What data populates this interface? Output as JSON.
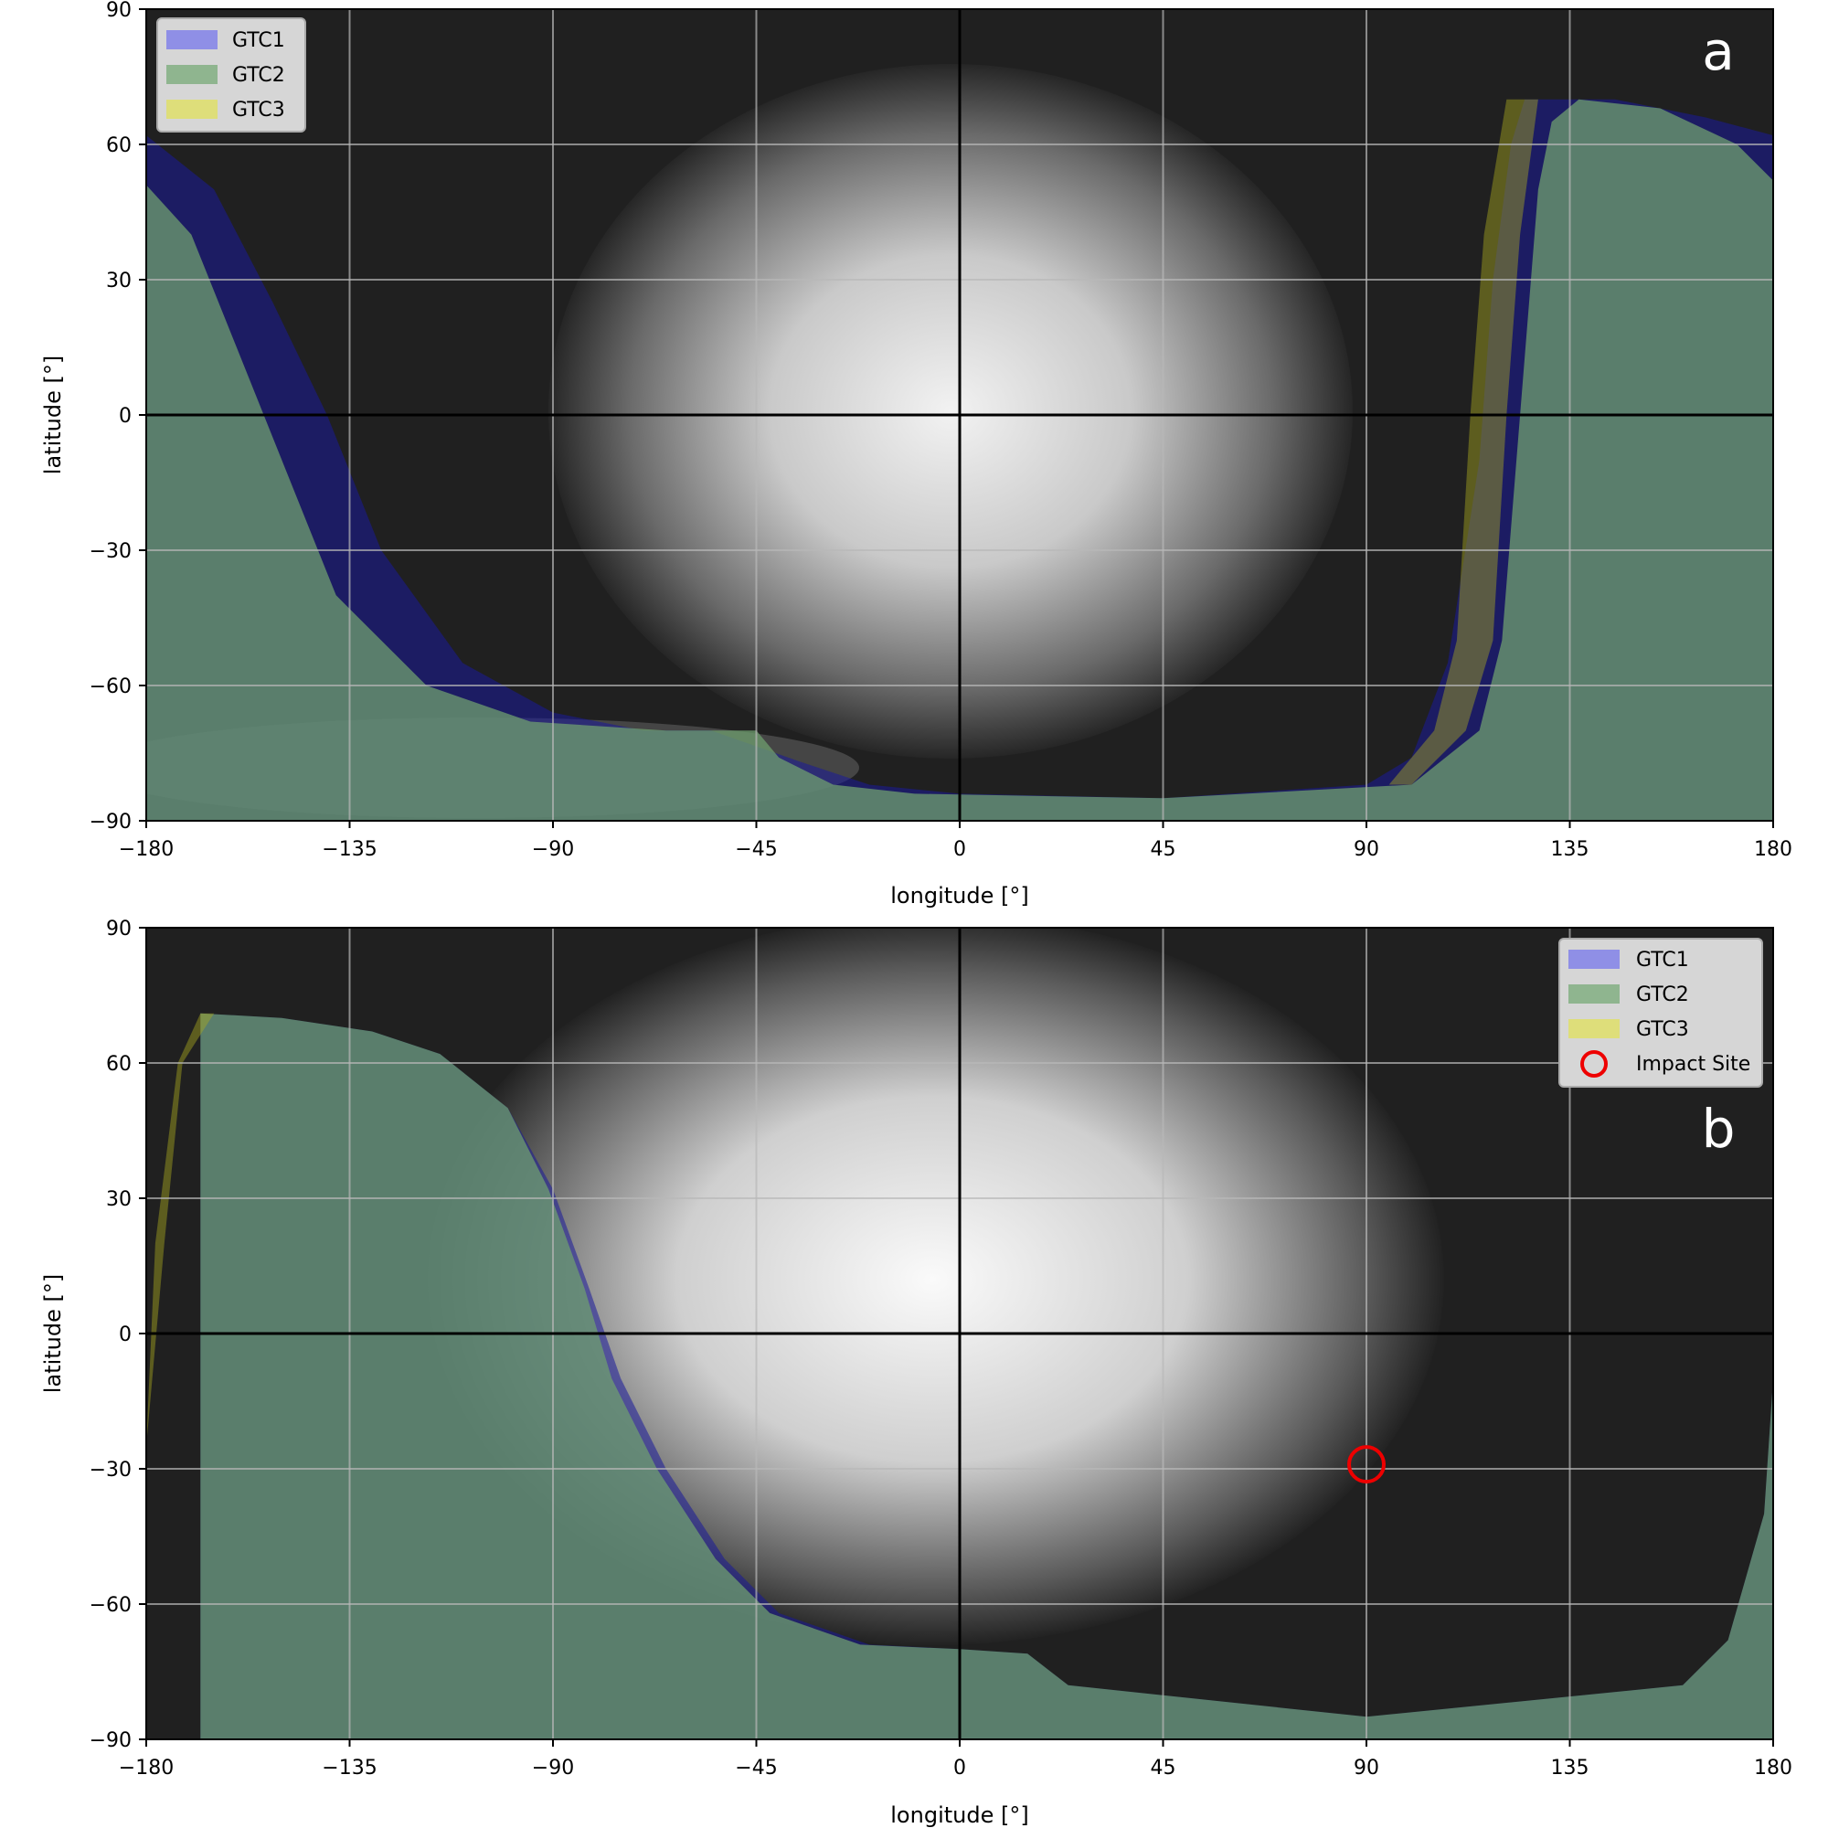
{
  "chart_data": [
    {
      "type": "area",
      "panel_label": "a",
      "xlabel": "longitude [°]",
      "ylabel": "latitude [°]",
      "xlim": [
        -180,
        180
      ],
      "ylim": [
        -90,
        90
      ],
      "xticks": [
        -180,
        -135,
        -90,
        -45,
        0,
        45,
        90,
        135,
        180
      ],
      "yticks": [
        -90,
        -60,
        -30,
        0,
        30,
        60,
        90
      ],
      "xtick_labels": [
        "−180",
        "−135",
        "−90",
        "−45",
        "0",
        "45",
        "90",
        "135",
        "180"
      ],
      "ytick_labels": [
        "−90",
        "−60",
        "−30",
        "0",
        "30",
        "60",
        "90"
      ],
      "grid": true,
      "legend_position": "top-left",
      "legend": [
        {
          "label": "GTC1",
          "color": "#6f6fd8"
        },
        {
          "label": "GTC2",
          "color": "#6f9f6f"
        },
        {
          "label": "GTC3",
          "color": "#c9c94f"
        }
      ],
      "series": [
        {
          "name": "GTC1",
          "color": "#1a1a9a",
          "boundary": [
            [
              -180,
              62
            ],
            [
              -165,
              50
            ],
            [
              -152,
              25
            ],
            [
              -140,
              0
            ],
            [
              -128,
              -30
            ],
            [
              -110,
              -55
            ],
            [
              -90,
              -66
            ],
            [
              -70,
              -70
            ],
            [
              -55,
              -70
            ],
            [
              -35,
              -77
            ],
            [
              -20,
              -82
            ],
            [
              0,
              -84
            ],
            [
              45,
              -85
            ],
            [
              90,
              -82
            ],
            [
              100,
              -76
            ],
            [
              108,
              -55
            ],
            [
              115,
              -10
            ],
            [
              118,
              30
            ],
            [
              122,
              60
            ],
            [
              125,
              70
            ],
            [
              145,
              70
            ],
            [
              165,
              66
            ],
            [
              180,
              62
            ]
          ]
        },
        {
          "name": "GTC2",
          "color": "#6f9f6f",
          "boundary": [
            [
              -180,
              51
            ],
            [
              -170,
              40
            ],
            [
              -158,
              10
            ],
            [
              -150,
              -10
            ],
            [
              -138,
              -40
            ],
            [
              -118,
              -60
            ],
            [
              -95,
              -68
            ],
            [
              -65,
              -70
            ],
            [
              -45,
              -70
            ],
            [
              -40,
              -76
            ],
            [
              -28,
              -82
            ],
            [
              -10,
              -84
            ],
            [
              45,
              -85
            ],
            [
              100,
              -82
            ],
            [
              115,
              -70
            ],
            [
              120,
              -50
            ],
            [
              124,
              0
            ],
            [
              128,
              50
            ],
            [
              131,
              65
            ],
            [
              137,
              70
            ],
            [
              155,
              68
            ],
            [
              172,
              60
            ],
            [
              180,
              52
            ]
          ]
        },
        {
          "name": "GTC3",
          "color": "#a8a820",
          "boundary": [
            [
              95,
              -82
            ],
            [
              105,
              -70
            ],
            [
              110,
              -50
            ],
            [
              113,
              0
            ],
            [
              116,
              40
            ],
            [
              121,
              70
            ],
            [
              128,
              70
            ],
            [
              124,
              40
            ],
            [
              121,
              0
            ],
            [
              118,
              -50
            ],
            [
              112,
              -70
            ],
            [
              100,
              -82
            ]
          ]
        }
      ]
    },
    {
      "type": "area",
      "panel_label": "b",
      "xlabel": "longitude [°]",
      "ylabel": "latitude [°]",
      "xlim": [
        -180,
        180
      ],
      "ylim": [
        -90,
        90
      ],
      "xticks": [
        -180,
        -135,
        -90,
        -45,
        0,
        45,
        90,
        135,
        180
      ],
      "yticks": [
        -90,
        -60,
        -30,
        0,
        30,
        60,
        90
      ],
      "xtick_labels": [
        "−180",
        "−135",
        "−90",
        "−45",
        "0",
        "45",
        "90",
        "135",
        "180"
      ],
      "ytick_labels": [
        "−90",
        "−60",
        "−30",
        "0",
        "30",
        "60",
        "90"
      ],
      "grid": true,
      "legend_position": "top-right",
      "legend": [
        {
          "label": "GTC1",
          "color": "#6f6fd8"
        },
        {
          "label": "GTC2",
          "color": "#6f9f6f"
        },
        {
          "label": "GTC3",
          "color": "#c9c94f"
        },
        {
          "label": "Impact Site",
          "color": "#ee0000",
          "marker": "circle"
        }
      ],
      "series": [
        {
          "name": "GTC1",
          "color": "#1a1a9a",
          "boundary": [
            [
              -168,
              71
            ],
            [
              -150,
              70
            ],
            [
              -130,
              67
            ],
            [
              -115,
              62
            ],
            [
              -100,
              50
            ],
            [
              -90,
              32
            ],
            [
              -82,
              10
            ],
            [
              -75,
              -10
            ],
            [
              -65,
              -30
            ],
            [
              -52,
              -50
            ],
            [
              -40,
              -62
            ],
            [
              -20,
              -69
            ],
            [
              0,
              -70
            ],
            [
              15,
              -71
            ],
            [
              24,
              -78
            ],
            [
              90,
              -85
            ],
            [
              160,
              -78
            ],
            [
              170,
              -68
            ],
            [
              178,
              -40
            ],
            [
              180,
              -10
            ]
          ]
        },
        {
          "name": "GTC2",
          "color": "#6f9f6f",
          "boundary": [
            [
              -168,
              71
            ],
            [
              -150,
              70
            ],
            [
              -130,
              67
            ],
            [
              -115,
              62
            ],
            [
              -100,
              50
            ],
            [
              -91,
              32
            ],
            [
              -83,
              10
            ],
            [
              -77,
              -10
            ],
            [
              -67,
              -30
            ],
            [
              -54,
              -50
            ],
            [
              -42,
              -62
            ],
            [
              -22,
              -69
            ],
            [
              0,
              -70
            ],
            [
              15,
              -71
            ],
            [
              24,
              -78
            ],
            [
              90,
              -85
            ],
            [
              160,
              -78
            ],
            [
              170,
              -68
            ],
            [
              178,
              -40
            ],
            [
              180,
              -10
            ]
          ]
        },
        {
          "name": "GTC3",
          "color": "#a8a820",
          "boundary": [
            [
              -180,
              -25
            ],
            [
              -178,
              20
            ],
            [
              -173,
              60
            ],
            [
              -168,
              71
            ],
            [
              -165,
              71
            ],
            [
              -172,
              60
            ],
            [
              -176,
              20
            ]
          ]
        }
      ],
      "impact_site": {
        "lon": 90,
        "lat": -29
      }
    }
  ]
}
